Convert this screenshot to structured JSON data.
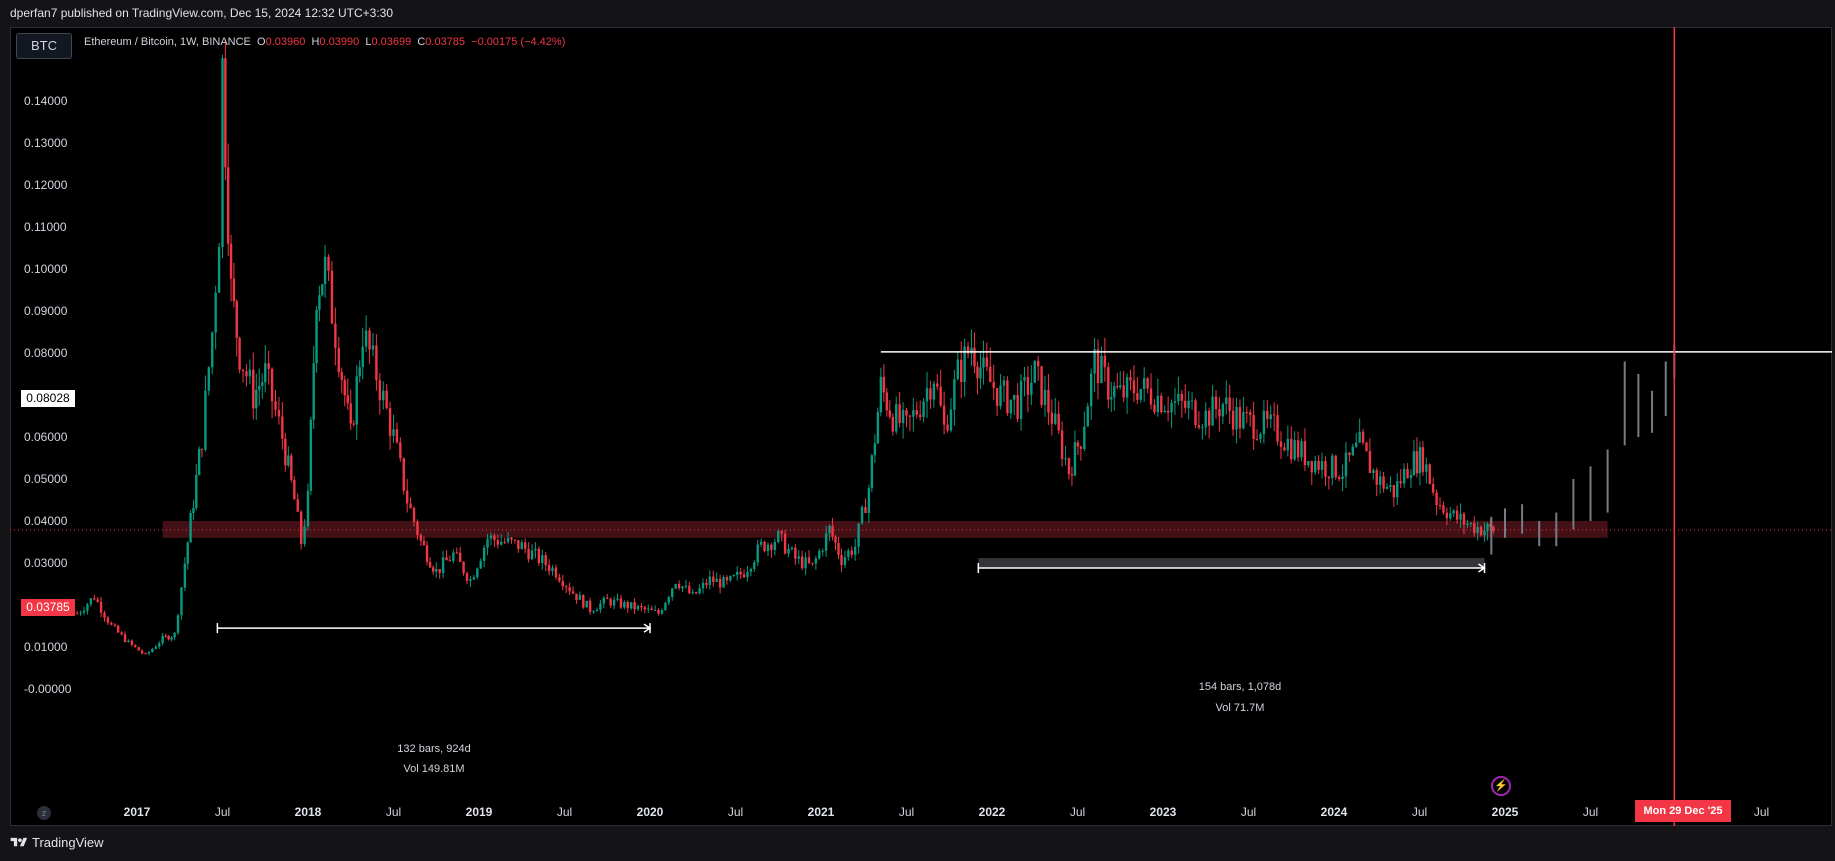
{
  "header": {
    "publish_line": "dperfan7 published on TradingView.com, Dec 15, 2024 12:32 UTC+3:30"
  },
  "symbol": {
    "short": "BTC",
    "title": "Ethereum / Bitcoin, 1W, BINANCE",
    "open_label": "O",
    "open": "0.03960",
    "high_label": "H",
    "high": "0.03990",
    "low_label": "L",
    "low": "0.03699",
    "close_label": "C",
    "close": "0.03785",
    "change": "−0.00175 (−4.42%)"
  },
  "price_tags": {
    "resistance": "0.08028",
    "last_price": "0.03785"
  },
  "date_tag": "Mon 29 Dec '25",
  "measurements": [
    {
      "bars": "132 bars, 924d",
      "vol": "Vol 149.81M"
    },
    {
      "bars": "154 bars, 1,078d",
      "vol": "Vol 71.7M"
    }
  ],
  "icons": {
    "zoom": "zoom-reset-icon",
    "bolt": "lightning-icon",
    "logo": "tradingview-logo-icon"
  },
  "colors": {
    "up": "#089981",
    "down": "#f23645",
    "background": "#000000",
    "resistance_line": "#ffffff",
    "support_zone": "#7a1f26",
    "projection": "#787b86",
    "vline": "#f23645"
  },
  "footer": {
    "brand": "TradingView"
  },
  "chart_data": {
    "type": "candlestick",
    "title": "Ethereum / Bitcoin, 1W, BINANCE",
    "y_ticks": [
      "0.14000",
      "0.13000",
      "0.12000",
      "0.11000",
      "0.10000",
      "0.09000",
      "0.08000",
      "0.07000",
      "0.06000",
      "0.05000",
      "0.04000",
      "0.03000",
      "0.02000",
      "0.01000",
      "-0.00000"
    ],
    "x_ticks": [
      {
        "label": "2017",
        "year": true,
        "t": 2017.0
      },
      {
        "label": "Jul",
        "year": false,
        "t": 2017.5
      },
      {
        "label": "2018",
        "year": true,
        "t": 2018.0
      },
      {
        "label": "Jul",
        "year": false,
        "t": 2018.5
      },
      {
        "label": "2019",
        "year": true,
        "t": 2019.0
      },
      {
        "label": "Jul",
        "year": false,
        "t": 2019.5
      },
      {
        "label": "2020",
        "year": true,
        "t": 2020.0
      },
      {
        "label": "Jul",
        "year": false,
        "t": 2020.5
      },
      {
        "label": "2021",
        "year": true,
        "t": 2021.0
      },
      {
        "label": "Jul",
        "year": false,
        "t": 2021.5
      },
      {
        "label": "2022",
        "year": true,
        "t": 2022.0
      },
      {
        "label": "Jul",
        "year": false,
        "t": 2022.5
      },
      {
        "label": "2023",
        "year": true,
        "t": 2023.0
      },
      {
        "label": "Jul",
        "year": false,
        "t": 2023.5
      },
      {
        "label": "2024",
        "year": true,
        "t": 2024.0
      },
      {
        "label": "Jul",
        "year": false,
        "t": 2024.5
      },
      {
        "label": "2025",
        "year": true,
        "t": 2025.0
      },
      {
        "label": "Jul",
        "year": false,
        "t": 2025.5
      },
      {
        "label": "Jul",
        "year": false,
        "t": 2026.5
      }
    ],
    "y_range": [
      -0.002,
      0.152
    ],
    "resistance_level": 0.08028,
    "last_price": 0.03785,
    "support_zone": [
      0.036,
      0.04
    ],
    "vertical_marker": 2025.99,
    "price_path": [
      [
        2016.65,
        0.018
      ],
      [
        2016.75,
        0.022
      ],
      [
        2016.85,
        0.015
      ],
      [
        2016.95,
        0.011
      ],
      [
        2017.05,
        0.008
      ],
      [
        2017.15,
        0.012
      ],
      [
        2017.22,
        0.013
      ],
      [
        2017.28,
        0.03
      ],
      [
        2017.33,
        0.045
      ],
      [
        2017.38,
        0.06
      ],
      [
        2017.44,
        0.085
      ],
      [
        2017.48,
        0.11
      ],
      [
        2017.5,
        0.148
      ],
      [
        2017.55,
        0.095
      ],
      [
        2017.6,
        0.08
      ],
      [
        2017.68,
        0.07
      ],
      [
        2017.75,
        0.075
      ],
      [
        2017.85,
        0.06
      ],
      [
        2017.92,
        0.045
      ],
      [
        2017.96,
        0.035
      ],
      [
        2018.0,
        0.045
      ],
      [
        2018.05,
        0.095
      ],
      [
        2018.1,
        0.1
      ],
      [
        2018.18,
        0.08
      ],
      [
        2018.25,
        0.06
      ],
      [
        2018.32,
        0.085
      ],
      [
        2018.4,
        0.075
      ],
      [
        2018.5,
        0.06
      ],
      [
        2018.58,
        0.045
      ],
      [
        2018.66,
        0.035
      ],
      [
        2018.75,
        0.028
      ],
      [
        2018.85,
        0.032
      ],
      [
        2018.95,
        0.026
      ],
      [
        2019.05,
        0.036
      ],
      [
        2019.15,
        0.035
      ],
      [
        2019.25,
        0.034
      ],
      [
        2019.35,
        0.031
      ],
      [
        2019.45,
        0.028
      ],
      [
        2019.55,
        0.023
      ],
      [
        2019.65,
        0.019
      ],
      [
        2019.75,
        0.021
      ],
      [
        2019.85,
        0.02
      ],
      [
        2019.95,
        0.019
      ],
      [
        2020.05,
        0.018
      ],
      [
        2020.15,
        0.026
      ],
      [
        2020.25,
        0.022
      ],
      [
        2020.35,
        0.026
      ],
      [
        2020.45,
        0.025
      ],
      [
        2020.55,
        0.028
      ],
      [
        2020.65,
        0.034
      ],
      [
        2020.75,
        0.036
      ],
      [
        2020.85,
        0.031
      ],
      [
        2020.95,
        0.029
      ],
      [
        2021.05,
        0.038
      ],
      [
        2021.12,
        0.031
      ],
      [
        2021.2,
        0.034
      ],
      [
        2021.28,
        0.048
      ],
      [
        2021.35,
        0.072
      ],
      [
        2021.42,
        0.065
      ],
      [
        2021.5,
        0.062
      ],
      [
        2021.58,
        0.068
      ],
      [
        2021.66,
        0.075
      ],
      [
        2021.72,
        0.062
      ],
      [
        2021.8,
        0.075
      ],
      [
        2021.88,
        0.082
      ],
      [
        2021.95,
        0.075
      ],
      [
        2022.05,
        0.07
      ],
      [
        2022.15,
        0.068
      ],
      [
        2022.25,
        0.075
      ],
      [
        2022.35,
        0.065
      ],
      [
        2022.45,
        0.052
      ],
      [
        2022.52,
        0.06
      ],
      [
        2022.6,
        0.078
      ],
      [
        2022.68,
        0.072
      ],
      [
        2022.75,
        0.07
      ],
      [
        2022.85,
        0.072
      ],
      [
        2022.95,
        0.07
      ],
      [
        2023.05,
        0.068
      ],
      [
        2023.15,
        0.067
      ],
      [
        2023.25,
        0.065
      ],
      [
        2023.35,
        0.068
      ],
      [
        2023.45,
        0.064
      ],
      [
        2023.55,
        0.063
      ],
      [
        2023.65,
        0.062
      ],
      [
        2023.75,
        0.058
      ],
      [
        2023.85,
        0.055
      ],
      [
        2023.95,
        0.053
      ],
      [
        2024.05,
        0.052
      ],
      [
        2024.15,
        0.058
      ],
      [
        2024.25,
        0.05
      ],
      [
        2024.35,
        0.047
      ],
      [
        2024.45,
        0.054
      ],
      [
        2024.52,
        0.055
      ],
      [
        2024.6,
        0.045
      ],
      [
        2024.7,
        0.041
      ],
      [
        2024.8,
        0.039
      ],
      [
        2024.88,
        0.038
      ],
      [
        2024.95,
        0.038
      ]
    ],
    "projection_bars": [
      [
        2024.92,
        0.032,
        0.041
      ],
      [
        2025.0,
        0.036,
        0.043
      ],
      [
        2025.1,
        0.037,
        0.044
      ],
      [
        2025.2,
        0.034,
        0.04
      ],
      [
        2025.3,
        0.034,
        0.042
      ],
      [
        2025.4,
        0.038,
        0.05
      ],
      [
        2025.5,
        0.04,
        0.053
      ],
      [
        2025.6,
        0.042,
        0.057
      ],
      [
        2025.7,
        0.058,
        0.078
      ],
      [
        2025.78,
        0.06,
        0.075
      ],
      [
        2025.86,
        0.061,
        0.071
      ],
      [
        2025.94,
        0.065,
        0.078
      ],
      [
        2025.99,
        0.074,
        0.082
      ]
    ],
    "measure_ranges": [
      {
        "from": 2017.47,
        "to": 2020.0,
        "price": 0.0145
      },
      {
        "from": 2021.92,
        "to": 2024.88,
        "price": 0.0288
      }
    ]
  }
}
